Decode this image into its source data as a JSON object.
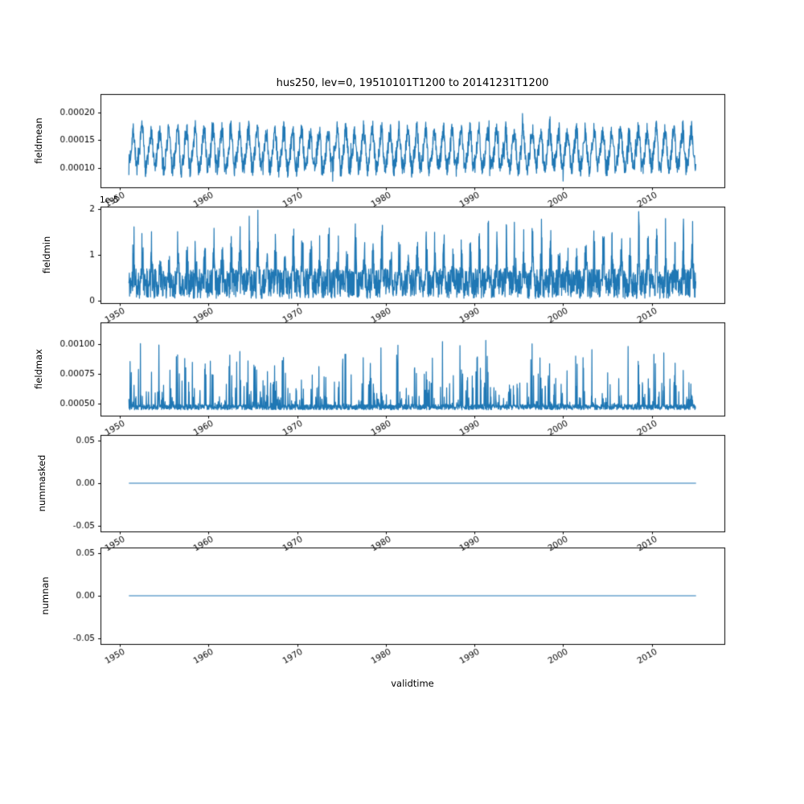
{
  "figure": {
    "line_color": "#1f77b4",
    "axis_color": "#000000",
    "background": "#ffffff"
  },
  "chart_data": {
    "type": "line",
    "title": "hus250, lev=0, 19510101T1200 to 20141231T1200",
    "xlabel": "validtime",
    "legend": "none",
    "grid": false,
    "x": {
      "lim": [
        1947.8,
        2018.2
      ],
      "ticks": [
        1950,
        1960,
        1970,
        1980,
        1990,
        2000,
        2010
      ],
      "tick_labels": [
        "1950",
        "1960",
        "1970",
        "1980",
        "1990",
        "2000",
        "2010"
      ],
      "tick_rotation_deg": 30,
      "data_start": 1951.0,
      "data_end": 2015.0,
      "points_per_year": 36
    },
    "subplots": [
      {
        "ylabel": "fieldmean",
        "ylim": [
          6.55e-05,
          0.000233
        ],
        "yticks": [
          0.0001,
          0.00015,
          0.0002
        ],
        "ytick_labels": [
          "0.00010",
          "0.00015",
          "0.00020"
        ],
        "offset_text": "",
        "series": {
          "kind": "seasonal-noise",
          "seed": 7,
          "base": 0.000132,
          "season_amp": 3.2e-05,
          "noise": 1.8e-05,
          "clip": [
            6.8e-05,
            0.000222
          ]
        }
      },
      {
        "ylabel": "fieldmin",
        "ylim": [
          -5e-07,
          2.05e-05
        ],
        "yticks": [
          0,
          1e-05,
          2e-05
        ],
        "ytick_labels": [
          "0",
          "1",
          "2"
        ],
        "offset_text": "1e-5",
        "series": {
          "kind": "seasonal-spikes",
          "seed": 11,
          "base": 5e-07,
          "band": 6.5e-06,
          "spike": 1.45e-05,
          "clip": [
            2e-08,
            2e-05
          ]
        }
      },
      {
        "ylabel": "fieldmax",
        "ylim": [
          0.000395,
          0.001185
        ],
        "yticks": [
          0.0005,
          0.00075,
          0.001
        ],
        "ytick_labels": [
          "0.00050",
          "0.00075",
          "0.00100"
        ],
        "offset_text": "",
        "series": {
          "kind": "noisy-spikes",
          "seed": 23,
          "base": 0.000445,
          "band": 4.5e-05,
          "spike": 0.00058,
          "spike_prob": 0.22,
          "clip": [
            0.00042,
            0.00113
          ]
        }
      },
      {
        "ylabel": "nummasked",
        "ylim": [
          -0.057,
          0.057
        ],
        "yticks": [
          -0.05,
          0,
          0.05
        ],
        "ytick_labels": [
          "-0.05",
          "0.00",
          "0.05"
        ],
        "offset_text": "",
        "series": {
          "kind": "constant",
          "value": 0
        }
      },
      {
        "ylabel": "numnan",
        "ylim": [
          -0.057,
          0.057
        ],
        "yticks": [
          -0.05,
          0,
          0.05
        ],
        "ytick_labels": [
          "-0.05",
          "0.00",
          "0.05"
        ],
        "offset_text": "",
        "series": {
          "kind": "constant",
          "value": 0
        }
      }
    ]
  }
}
